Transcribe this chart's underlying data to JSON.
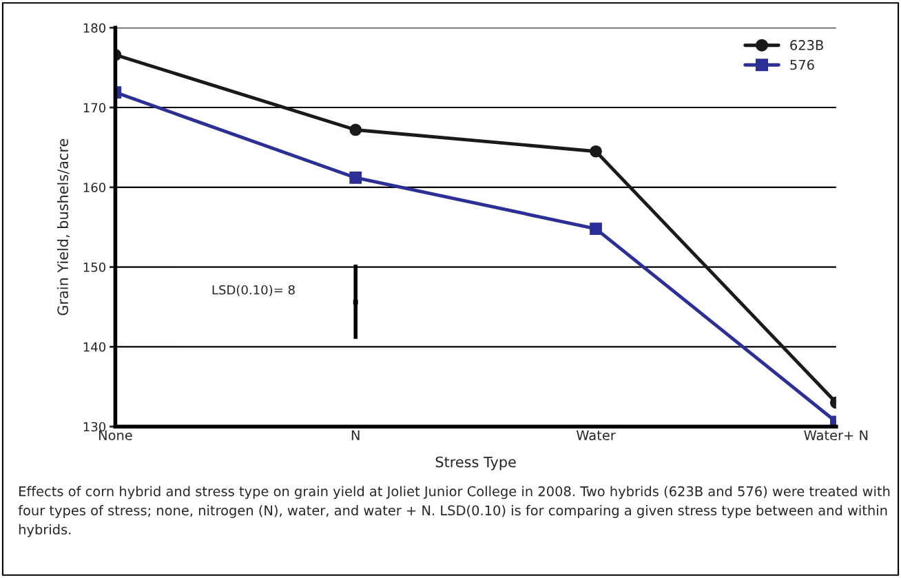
{
  "chart_data": {
    "type": "line",
    "xlabel": "Stress Type",
    "ylabel": "Grain Yield, bushels/acre",
    "categories": [
      "None",
      "N",
      "Water",
      "Water+ N"
    ],
    "series": [
      {
        "name": "623B",
        "color": "#1a1a1a",
        "marker": "circle",
        "values": [
          176.6,
          167.2,
          164.5,
          133.0
        ]
      },
      {
        "name": "576",
        "color": "#2b2f96",
        "marker": "square",
        "values": [
          171.9,
          161.2,
          154.8,
          130.6
        ]
      },
      {
        "type": "scatter",
        "color": "#000000",
        "marker": "square",
        "values": [
          null,
          145.6,
          null,
          null
        ],
        "errors": [
          null,
          [
            141.0,
            150.3
          ],
          null,
          null
        ]
      }
    ],
    "ylim": [
      130,
      180
    ],
    "yticks": [
      130,
      140,
      150,
      160,
      170,
      180
    ],
    "grid": "y",
    "legend": "top right",
    "line_style": "solid",
    "annotations": [
      "LSD(0.10)= 8",
      "Effects of corn hybrid and stress type on grain yield at Joliet Junior College in 2008. Two hybrids (623B and 576) were treated with four types of stress; none, nitrogen (N), water, and water + N. LSD(0.10) is for comparing a given stress type between and within hybrids."
    ]
  }
}
